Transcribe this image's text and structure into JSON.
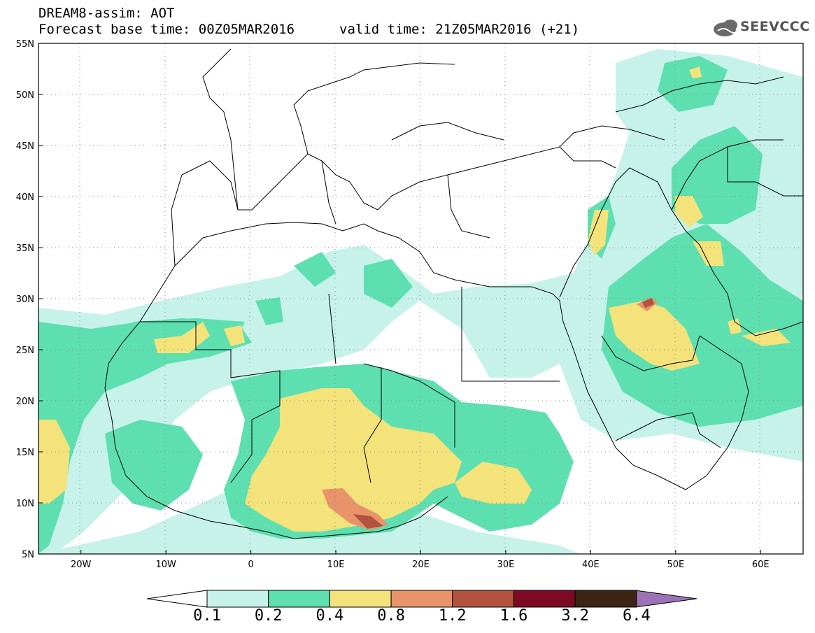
{
  "header": {
    "line1": "DREAM8-assim: AOT",
    "line2": "Forecast base time: 00Z05MAR2016",
    "valid": "valid time: 21Z05MAR2016 (+21)",
    "logo_text": "SEEVCCC"
  },
  "map": {
    "lat_range": [
      5,
      55
    ],
    "lon_range": [
      -25,
      65
    ],
    "lat_labels": [
      "55N",
      "50N",
      "45N",
      "40N",
      "35N",
      "30N",
      "25N",
      "20N",
      "15N",
      "10N",
      "5N"
    ],
    "lon_labels": [
      "20W",
      "10W",
      "0",
      "10E",
      "20E",
      "30E",
      "40E",
      "50E",
      "60E"
    ],
    "grid": "dotted"
  },
  "legend": {
    "levels": [
      "0.1",
      "0.2",
      "0.4",
      "0.8",
      "1.2",
      "1.6",
      "3.2",
      "6.4"
    ],
    "colors": [
      "#c6f2ea",
      "#5ddfb0",
      "#f4e27b",
      "#e8936a",
      "#b1533e",
      "#7b0a22",
      "#3c2414",
      "#9b73b5"
    ]
  }
}
